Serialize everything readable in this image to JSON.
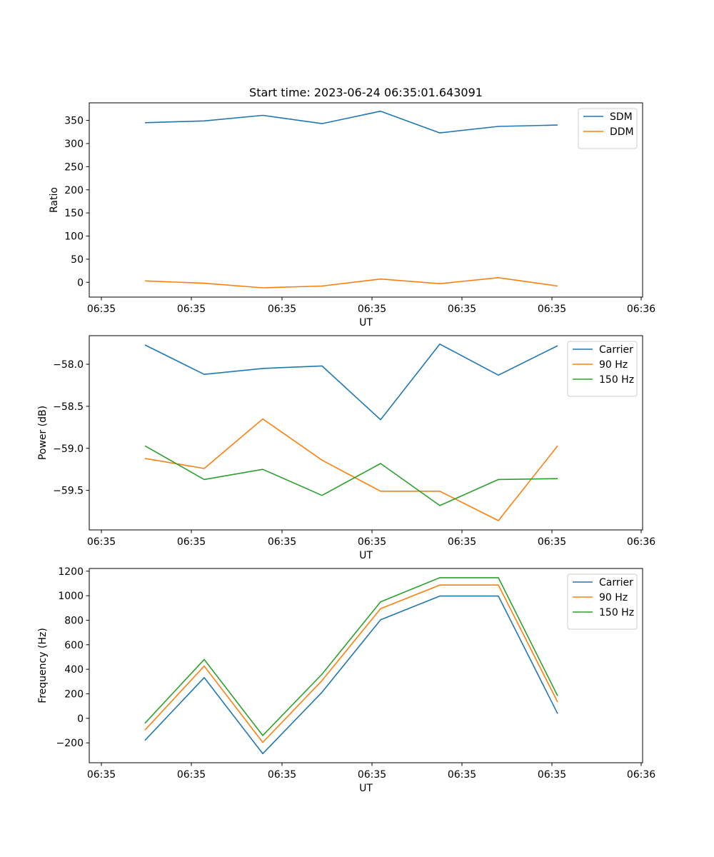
{
  "figure": {
    "title": "Start time: 2023-06-24 06:35:01.643091"
  },
  "chart_data": [
    {
      "type": "line",
      "title": "Start time: 2023-06-24 06:35:01.643091",
      "xlabel": "UT",
      "ylabel": "Ratio",
      "x_tick_labels": [
        "06:35",
        "06:35",
        "06:35",
        "06:35",
        "06:35",
        "06:35",
        "06:36"
      ],
      "y_ticks": [
        0,
        50,
        100,
        150,
        200,
        250,
        300,
        350
      ],
      "ylim": [
        -32,
        388
      ],
      "legend_position": "top-right",
      "grid": false,
      "series": [
        {
          "name": "SDM",
          "color": "#1f77b4",
          "values": [
            345,
            349,
            361,
            343,
            370,
            323,
            337,
            340
          ]
        },
        {
          "name": "DDM",
          "color": "#ff7f0e",
          "values": [
            3,
            -2,
            -12,
            -8,
            7,
            -3,
            10,
            -8
          ]
        }
      ]
    },
    {
      "type": "line",
      "title": "",
      "xlabel": "UT",
      "ylabel": "Power (dB)",
      "x_tick_labels": [
        "06:35",
        "06:35",
        "06:35",
        "06:35",
        "06:35",
        "06:35",
        "06:36"
      ],
      "y_ticks": [
        -59.5,
        -59.0,
        -58.5,
        -58.0
      ],
      "y_tick_labels": [
        "−59.5",
        "−59.0",
        "−58.5",
        "−58.0"
      ],
      "ylim": [
        -59.97,
        -57.66
      ],
      "legend_position": "top-right",
      "grid": false,
      "series": [
        {
          "name": "Carrier",
          "color": "#1f77b4",
          "values": [
            -57.77,
            -58.12,
            -58.05,
            -58.02,
            -58.66,
            -57.76,
            -58.13,
            -57.78
          ]
        },
        {
          "name": "90 Hz",
          "color": "#ff7f0e",
          "values": [
            -59.12,
            -59.24,
            -58.65,
            -59.14,
            -59.51,
            -59.51,
            -59.86,
            -58.97
          ]
        },
        {
          "name": "150 Hz",
          "color": "#2ca02c",
          "values": [
            -58.97,
            -59.37,
            -59.25,
            -59.56,
            -59.18,
            -59.68,
            -59.37,
            -59.36
          ]
        }
      ]
    },
    {
      "type": "line",
      "title": "",
      "xlabel": "UT",
      "ylabel": "Frequency (Hz)",
      "x_tick_labels": [
        "06:35",
        "06:35",
        "06:35",
        "06:35",
        "06:35",
        "06:35",
        "06:36"
      ],
      "y_ticks": [
        -200,
        0,
        200,
        400,
        600,
        800,
        1000,
        1200
      ],
      "y_tick_labels": [
        "−200",
        "0",
        "200",
        "400",
        "600",
        "800",
        "1000",
        "1200"
      ],
      "ylim": [
        -362,
        1222
      ],
      "legend_position": "top-right",
      "grid": false,
      "series": [
        {
          "name": "Carrier",
          "color": "#1f77b4",
          "values": [
            -180,
            332,
            -288,
            213,
            803,
            997,
            997,
            38
          ]
        },
        {
          "name": "90 Hz",
          "color": "#ff7f0e",
          "values": [
            -95,
            426,
            -196,
            308,
            894,
            1087,
            1087,
            133
          ]
        },
        {
          "name": "150 Hz",
          "color": "#2ca02c",
          "values": [
            -40,
            480,
            -140,
            360,
            950,
            1147,
            1147,
            183
          ]
        }
      ]
    }
  ]
}
